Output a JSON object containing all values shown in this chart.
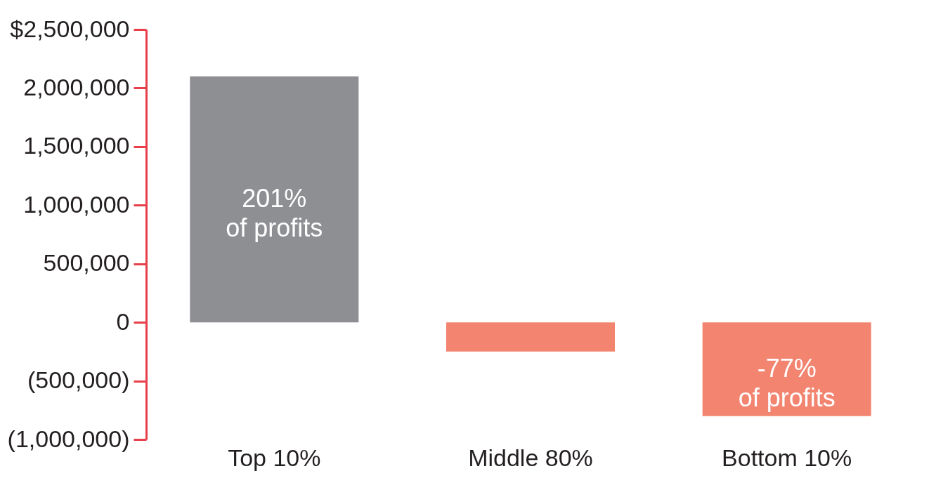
{
  "chart_data": {
    "type": "bar",
    "categories": [
      "Top 10%",
      "Middle 80%",
      "Bottom 10%"
    ],
    "values": [
      2100000,
      -250000,
      -800000
    ],
    "colors": [
      "#8e8f93",
      "#f28470",
      "#f28470"
    ],
    "annotations": [
      "201%\nof profits",
      "-77%\nof profits"
    ],
    "grid": false,
    "ylim": [
      -1000000,
      2500000
    ],
    "yticks": [
      {
        "value": -1000000,
        "label": "(1,000,000)"
      },
      {
        "value": -500000,
        "label": "(500,000)"
      },
      0,
      {
        "value": 500000,
        "label": "500,000"
      },
      {
        "value": 1000000,
        "label": "1,000,000"
      },
      {
        "value": 1500000,
        "label": "1,500,000"
      },
      {
        "value": 2000000,
        "label": "2,000,000"
      },
      {
        "value": 2500000,
        "label": "$2,500,000"
      }
    ]
  }
}
